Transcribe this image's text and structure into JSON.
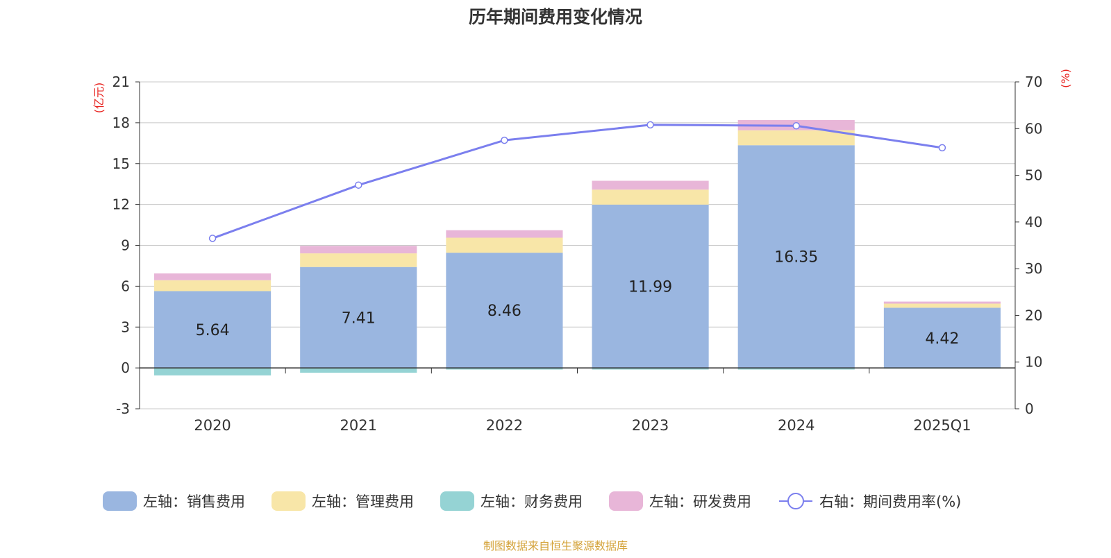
{
  "chart_data": {
    "type": "bar",
    "title": "历年期间费用变化情况",
    "footer": "制图数据来自恒生聚源数据库",
    "left_axis_unit": "(亿元)",
    "right_axis_unit": "(%)",
    "ylim_left": [
      -3,
      21
    ],
    "yticks_left": [
      -3,
      0,
      3,
      6,
      9,
      12,
      15,
      18,
      21
    ],
    "ylim_right": [
      0,
      70
    ],
    "yticks_right": [
      0,
      10,
      20,
      30,
      40,
      50,
      60,
      70
    ],
    "categories": [
      "2020",
      "2021",
      "2022",
      "2023",
      "2024",
      "2025Q1"
    ],
    "series": [
      {
        "name": "左轴：销售费用",
        "type": "bar",
        "axis": "left",
        "color": "#9ab6e0",
        "values": [
          5.64,
          7.41,
          8.46,
          11.99,
          16.35,
          4.42
        ],
        "labels": [
          "5.64",
          "7.41",
          "8.46",
          "11.99",
          "16.35",
          "4.42"
        ]
      },
      {
        "name": "左轴：管理费用",
        "type": "bar",
        "axis": "left",
        "color": "#f8e6a8",
        "values": [
          0.8,
          1.0,
          1.1,
          1.1,
          1.1,
          0.3
        ]
      },
      {
        "name": "左轴：财务费用",
        "type": "bar",
        "axis": "left",
        "color": "#95d3d4",
        "values": [
          -0.55,
          -0.35,
          -0.12,
          -0.12,
          -0.12,
          -0.05
        ]
      },
      {
        "name": "左轴：研发费用",
        "type": "bar",
        "axis": "left",
        "color": "#e8b6d8",
        "values": [
          0.5,
          0.55,
          0.55,
          0.65,
          0.75,
          0.15
        ]
      },
      {
        "name": "右轴：期间费用率(%)",
        "type": "line",
        "axis": "right",
        "color": "#7b7fee",
        "values": [
          36.5,
          47.9,
          57.5,
          60.8,
          60.6,
          55.9
        ]
      }
    ],
    "grid": true,
    "legend_position": "bottom"
  }
}
